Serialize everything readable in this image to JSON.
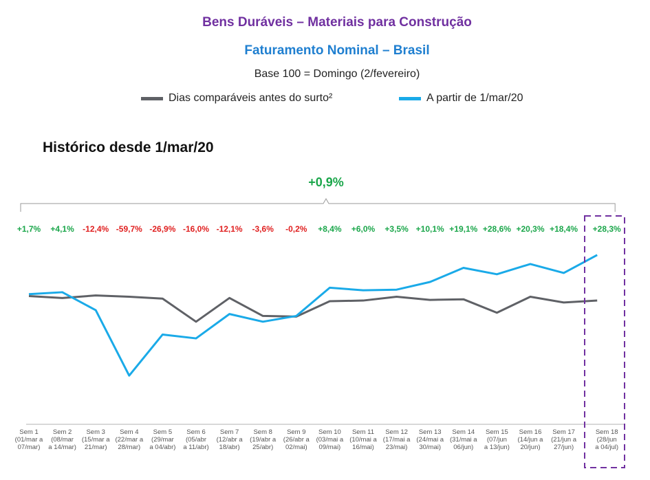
{
  "header": {
    "title_line1": "Bens Duráveis – Materiais para Construção",
    "title_line2": "Faturamento Nominal – Brasil",
    "subtitle": "Base 100 = Domingo (2/fevereiro)"
  },
  "section_title": "Histórico desde 1/mar/20",
  "summary_change": "+0,9%",
  "colors": {
    "title1": "#7030a0",
    "title2": "#1f7fd0",
    "positive": "#1aa64a",
    "negative": "#e02020",
    "highlight_box": "#7030a0"
  },
  "chart_data": {
    "type": "line",
    "categories": [
      [
        "Sem 1",
        "(01/mar a",
        "07/mar)"
      ],
      [
        "Sem 2",
        "(08/mar",
        "a 14/mar)"
      ],
      [
        "Sem 3",
        "(15/mar a",
        "21/mar)"
      ],
      [
        "Sem 4",
        "(22/mar a",
        "28/mar)"
      ],
      [
        "Sem 5",
        "(29/mar",
        "a 04/abr)"
      ],
      [
        "Sem 6",
        "(05/abr",
        "a 11/abr)"
      ],
      [
        "Sem 7",
        "(12/abr a",
        "18/abr)"
      ],
      [
        "Sem 8",
        "(19/abr a",
        "25/abr)"
      ],
      [
        "Sem 9",
        "(26/abr a",
        "02/mai)"
      ],
      [
        "Sem 10",
        "(03/mai a",
        "09/mai)"
      ],
      [
        "Sem 11",
        "(10/mai a",
        "16/mai)"
      ],
      [
        "Sem 12",
        "(17/mai a",
        "23/mai)"
      ],
      [
        "Sem 13",
        "(24/mai a",
        "30/mai)"
      ],
      [
        "Sem 14",
        "(31/mai a",
        "06/jun)"
      ],
      [
        "Sem 15",
        "(07/jun",
        "a 13/jun)"
      ],
      [
        "Sem 16",
        "(14/jun a",
        "20/jun)"
      ],
      [
        "Sem 17",
        "(21/jun a",
        "27/jun)"
      ],
      [
        "Sem 18",
        "(28/jun",
        "a 04/jul)"
      ]
    ],
    "change_labels": [
      "+1,7%",
      "+4,1%",
      "-12,4%",
      "-59,7%",
      "-26,9%",
      "-16,0%",
      "-12,1%",
      "-3,6%",
      "-0,2%",
      "+8,4%",
      "+6,0%",
      "+3,5%",
      "+10,1%",
      "+19,1%",
      "+28,6%",
      "+20,3%",
      "+18,4%",
      "+28,3%"
    ],
    "series": [
      {
        "name": "Dias comparáveis antes do surto²",
        "color": "#5f6166",
        "values": [
          100,
          98.5,
          100.5,
          99.5,
          98,
          80,
          98.5,
          84.5,
          84,
          96,
          96.5,
          99.5,
          97,
          97.5,
          87,
          99.5,
          95,
          96.5
        ]
      },
      {
        "name": "A partir de 1/mar/20",
        "color": "#1aaae8",
        "values": [
          101.5,
          103,
          89,
          38,
          70,
          67,
          86,
          80,
          84.5,
          106.5,
          104.5,
          105,
          111,
          122,
          117,
          125,
          118,
          132
        ]
      }
    ],
    "highlight_category": "Sem 18",
    "ylim": [
      0,
      170
    ]
  }
}
